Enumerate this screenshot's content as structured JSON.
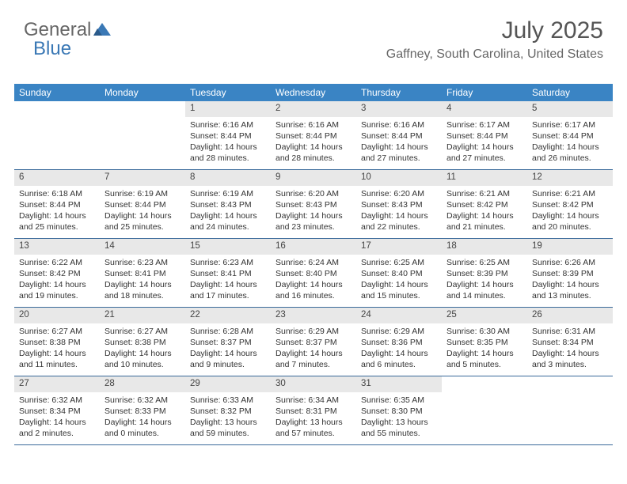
{
  "logo": {
    "part1": "General",
    "part2": "Blue"
  },
  "title": "July 2025",
  "location": "Gaffney, South Carolina, United States",
  "colors": {
    "header_bg": "#3a84c4",
    "header_text": "#ffffff",
    "daynum_bg": "#e8e8e8",
    "rule": "#3a6a9a",
    "title_color": "#555555",
    "location_color": "#666666",
    "text_color": "#333333",
    "logo_blue": "#3a78b5"
  },
  "day_headers": [
    "Sunday",
    "Monday",
    "Tuesday",
    "Wednesday",
    "Thursday",
    "Friday",
    "Saturday"
  ],
  "weeks": [
    [
      {
        "blank": true
      },
      {
        "blank": true
      },
      {
        "n": "1",
        "sunrise": "Sunrise: 6:16 AM",
        "sunset": "Sunset: 8:44 PM",
        "dl1": "Daylight: 14 hours",
        "dl2": "and 28 minutes."
      },
      {
        "n": "2",
        "sunrise": "Sunrise: 6:16 AM",
        "sunset": "Sunset: 8:44 PM",
        "dl1": "Daylight: 14 hours",
        "dl2": "and 28 minutes."
      },
      {
        "n": "3",
        "sunrise": "Sunrise: 6:16 AM",
        "sunset": "Sunset: 8:44 PM",
        "dl1": "Daylight: 14 hours",
        "dl2": "and 27 minutes."
      },
      {
        "n": "4",
        "sunrise": "Sunrise: 6:17 AM",
        "sunset": "Sunset: 8:44 PM",
        "dl1": "Daylight: 14 hours",
        "dl2": "and 27 minutes."
      },
      {
        "n": "5",
        "sunrise": "Sunrise: 6:17 AM",
        "sunset": "Sunset: 8:44 PM",
        "dl1": "Daylight: 14 hours",
        "dl2": "and 26 minutes."
      }
    ],
    [
      {
        "n": "6",
        "sunrise": "Sunrise: 6:18 AM",
        "sunset": "Sunset: 8:44 PM",
        "dl1": "Daylight: 14 hours",
        "dl2": "and 25 minutes."
      },
      {
        "n": "7",
        "sunrise": "Sunrise: 6:19 AM",
        "sunset": "Sunset: 8:44 PM",
        "dl1": "Daylight: 14 hours",
        "dl2": "and 25 minutes."
      },
      {
        "n": "8",
        "sunrise": "Sunrise: 6:19 AM",
        "sunset": "Sunset: 8:43 PM",
        "dl1": "Daylight: 14 hours",
        "dl2": "and 24 minutes."
      },
      {
        "n": "9",
        "sunrise": "Sunrise: 6:20 AM",
        "sunset": "Sunset: 8:43 PM",
        "dl1": "Daylight: 14 hours",
        "dl2": "and 23 minutes."
      },
      {
        "n": "10",
        "sunrise": "Sunrise: 6:20 AM",
        "sunset": "Sunset: 8:43 PM",
        "dl1": "Daylight: 14 hours",
        "dl2": "and 22 minutes."
      },
      {
        "n": "11",
        "sunrise": "Sunrise: 6:21 AM",
        "sunset": "Sunset: 8:42 PM",
        "dl1": "Daylight: 14 hours",
        "dl2": "and 21 minutes."
      },
      {
        "n": "12",
        "sunrise": "Sunrise: 6:21 AM",
        "sunset": "Sunset: 8:42 PM",
        "dl1": "Daylight: 14 hours",
        "dl2": "and 20 minutes."
      }
    ],
    [
      {
        "n": "13",
        "sunrise": "Sunrise: 6:22 AM",
        "sunset": "Sunset: 8:42 PM",
        "dl1": "Daylight: 14 hours",
        "dl2": "and 19 minutes."
      },
      {
        "n": "14",
        "sunrise": "Sunrise: 6:23 AM",
        "sunset": "Sunset: 8:41 PM",
        "dl1": "Daylight: 14 hours",
        "dl2": "and 18 minutes."
      },
      {
        "n": "15",
        "sunrise": "Sunrise: 6:23 AM",
        "sunset": "Sunset: 8:41 PM",
        "dl1": "Daylight: 14 hours",
        "dl2": "and 17 minutes."
      },
      {
        "n": "16",
        "sunrise": "Sunrise: 6:24 AM",
        "sunset": "Sunset: 8:40 PM",
        "dl1": "Daylight: 14 hours",
        "dl2": "and 16 minutes."
      },
      {
        "n": "17",
        "sunrise": "Sunrise: 6:25 AM",
        "sunset": "Sunset: 8:40 PM",
        "dl1": "Daylight: 14 hours",
        "dl2": "and 15 minutes."
      },
      {
        "n": "18",
        "sunrise": "Sunrise: 6:25 AM",
        "sunset": "Sunset: 8:39 PM",
        "dl1": "Daylight: 14 hours",
        "dl2": "and 14 minutes."
      },
      {
        "n": "19",
        "sunrise": "Sunrise: 6:26 AM",
        "sunset": "Sunset: 8:39 PM",
        "dl1": "Daylight: 14 hours",
        "dl2": "and 13 minutes."
      }
    ],
    [
      {
        "n": "20",
        "sunrise": "Sunrise: 6:27 AM",
        "sunset": "Sunset: 8:38 PM",
        "dl1": "Daylight: 14 hours",
        "dl2": "and 11 minutes."
      },
      {
        "n": "21",
        "sunrise": "Sunrise: 6:27 AM",
        "sunset": "Sunset: 8:38 PM",
        "dl1": "Daylight: 14 hours",
        "dl2": "and 10 minutes."
      },
      {
        "n": "22",
        "sunrise": "Sunrise: 6:28 AM",
        "sunset": "Sunset: 8:37 PM",
        "dl1": "Daylight: 14 hours",
        "dl2": "and 9 minutes."
      },
      {
        "n": "23",
        "sunrise": "Sunrise: 6:29 AM",
        "sunset": "Sunset: 8:37 PM",
        "dl1": "Daylight: 14 hours",
        "dl2": "and 7 minutes."
      },
      {
        "n": "24",
        "sunrise": "Sunrise: 6:29 AM",
        "sunset": "Sunset: 8:36 PM",
        "dl1": "Daylight: 14 hours",
        "dl2": "and 6 minutes."
      },
      {
        "n": "25",
        "sunrise": "Sunrise: 6:30 AM",
        "sunset": "Sunset: 8:35 PM",
        "dl1": "Daylight: 14 hours",
        "dl2": "and 5 minutes."
      },
      {
        "n": "26",
        "sunrise": "Sunrise: 6:31 AM",
        "sunset": "Sunset: 8:34 PM",
        "dl1": "Daylight: 14 hours",
        "dl2": "and 3 minutes."
      }
    ],
    [
      {
        "n": "27",
        "sunrise": "Sunrise: 6:32 AM",
        "sunset": "Sunset: 8:34 PM",
        "dl1": "Daylight: 14 hours",
        "dl2": "and 2 minutes."
      },
      {
        "n": "28",
        "sunrise": "Sunrise: 6:32 AM",
        "sunset": "Sunset: 8:33 PM",
        "dl1": "Daylight: 14 hours",
        "dl2": "and 0 minutes."
      },
      {
        "n": "29",
        "sunrise": "Sunrise: 6:33 AM",
        "sunset": "Sunset: 8:32 PM",
        "dl1": "Daylight: 13 hours",
        "dl2": "and 59 minutes."
      },
      {
        "n": "30",
        "sunrise": "Sunrise: 6:34 AM",
        "sunset": "Sunset: 8:31 PM",
        "dl1": "Daylight: 13 hours",
        "dl2": "and 57 minutes."
      },
      {
        "n": "31",
        "sunrise": "Sunrise: 6:35 AM",
        "sunset": "Sunset: 8:30 PM",
        "dl1": "Daylight: 13 hours",
        "dl2": "and 55 minutes."
      },
      {
        "blank": true
      },
      {
        "blank": true
      }
    ]
  ]
}
